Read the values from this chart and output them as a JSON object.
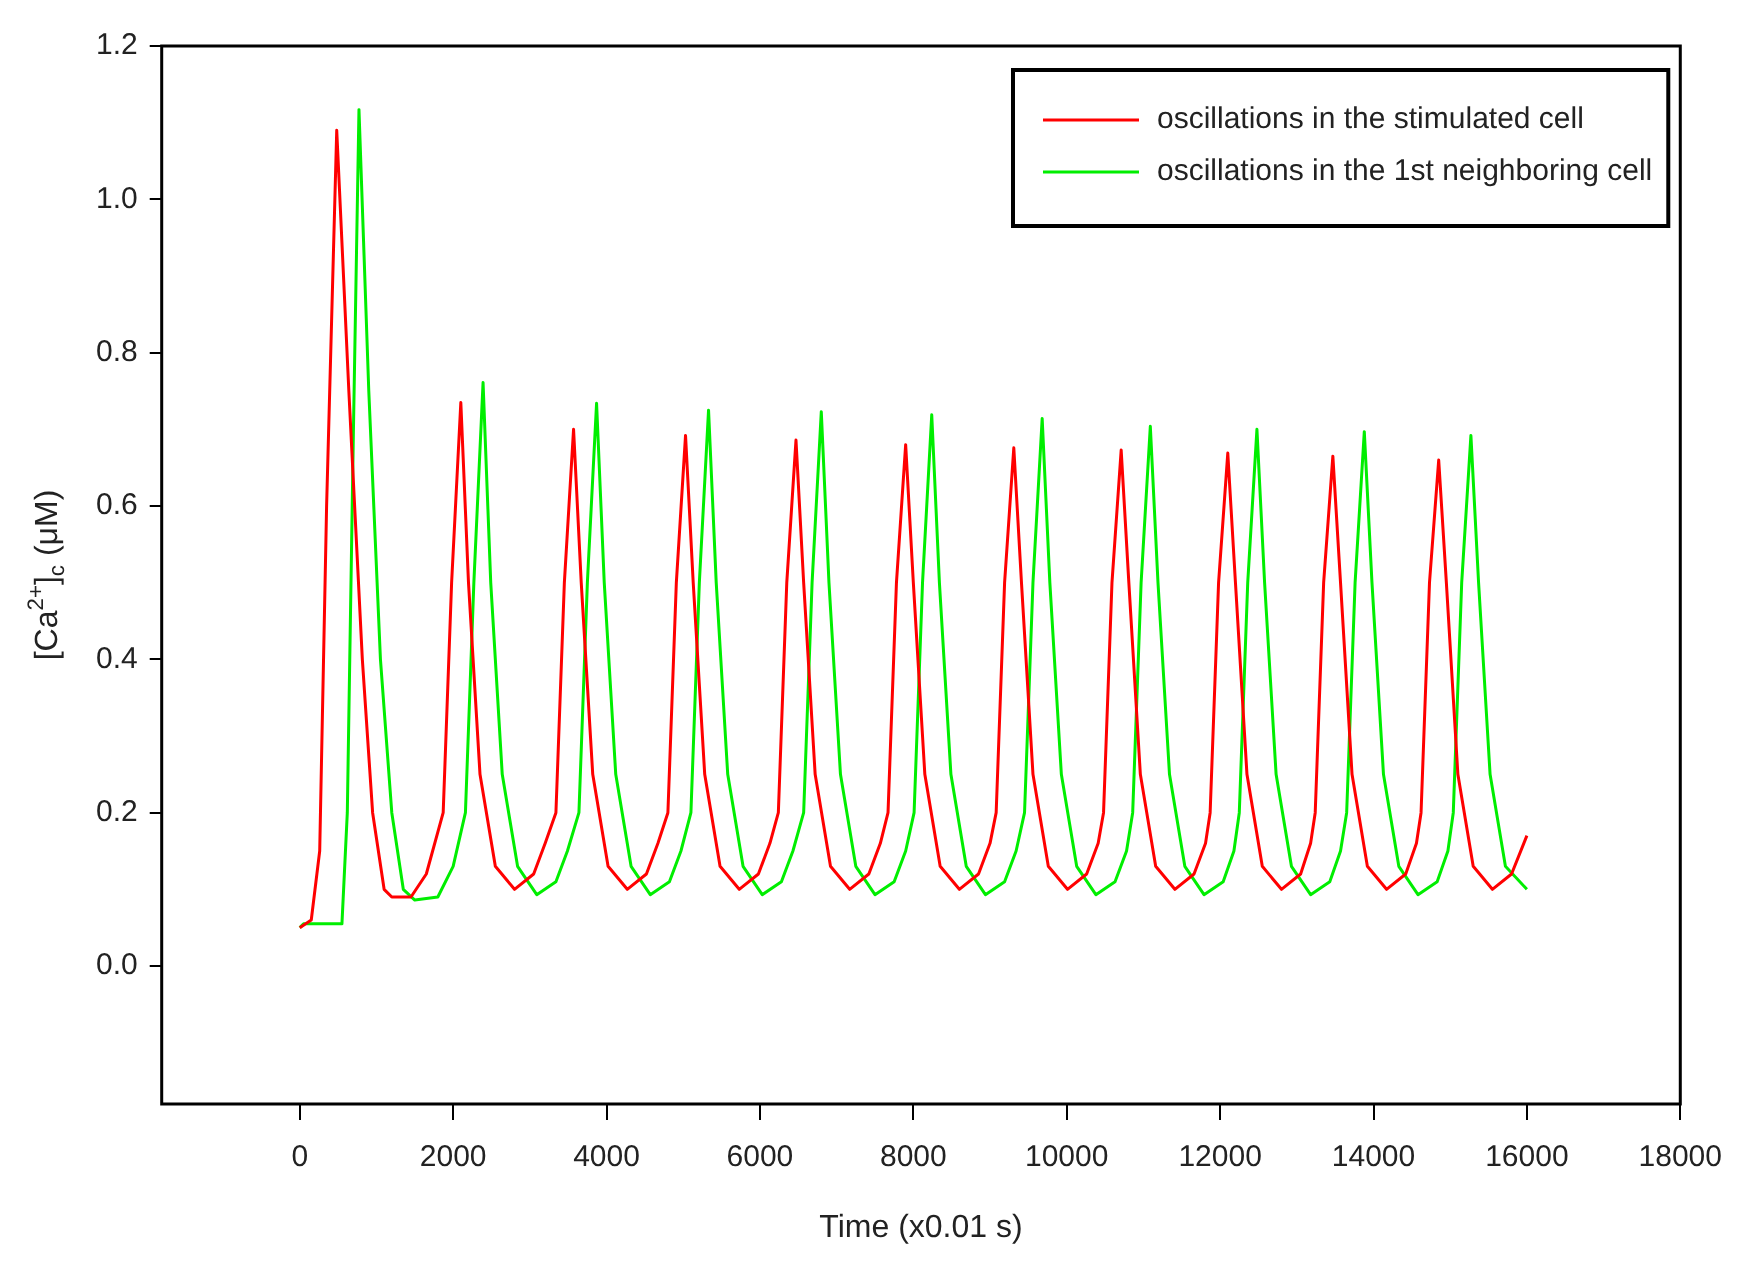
{
  "chart_data": {
    "type": "line",
    "xlabel": "Time (x0.01 s)",
    "ylabel": "[Ca$^{2+}$]$_{c}$ (μM)",
    "xlim": [
      -1800,
      18000
    ],
    "xticks": [
      0,
      2000,
      4000,
      6000,
      8000,
      10000,
      12000,
      14000,
      16000,
      18000
    ],
    "ylim": [
      -0.18,
      1.2
    ],
    "yticks": [
      {
        "value": 0,
        "label": "0.0"
      },
      {
        "value": 0.2,
        "label": "0.2"
      },
      {
        "value": 0.4,
        "label": "0.4"
      },
      {
        "value": 0.6,
        "label": "0.6"
      },
      {
        "value": 0.8,
        "label": "0.8"
      },
      {
        "value": 1,
        "label": "1.0"
      },
      {
        "value": 1.2,
        "label": "1.2"
      }
    ],
    "grid": false,
    "legend": "top right",
    "marker": "none",
    "line_style": "solid",
    "series": [
      {
        "name": "oscillations in the stimulated cell",
        "color": "#ff0000",
        "x": [
          0,
          150,
          260,
          350,
          482,
          640,
          816,
          950,
          1100,
          1200,
          1450,
          1650,
          1870,
          1980,
          2100,
          2200,
          2350,
          2550,
          2800,
          3050,
          3200,
          3340,
          3450,
          3570,
          3670,
          3820,
          4020,
          4270,
          4520,
          4670,
          4800,
          4910,
          5030,
          5130,
          5280,
          5480,
          5730,
          5980,
          6130,
          6240,
          6350,
          6470,
          6570,
          6720,
          6920,
          7170,
          7420,
          7570,
          7670,
          7780,
          7900,
          8000,
          8150,
          8350,
          8600,
          8850,
          9000,
          9080,
          9190,
          9310,
          9410,
          9560,
          9760,
          10010,
          10260,
          10410,
          10480,
          10590,
          10710,
          10810,
          10960,
          11160,
          11410,
          11660,
          11810,
          11870,
          11980,
          12100,
          12200,
          12350,
          12550,
          12800,
          13050,
          13180,
          13240,
          13350,
          13470,
          13570,
          13720,
          13920,
          14170,
          14420,
          14560,
          14620,
          14730,
          14850,
          14950,
          15100,
          15300,
          15550,
          15800,
          16000
        ],
        "values": [
          0.05,
          0.06,
          0.15,
          0.6,
          1.09,
          0.75,
          0.4,
          0.2,
          0.1,
          0.09,
          0.09,
          0.12,
          0.2,
          0.5,
          0.735,
          0.5,
          0.25,
          0.13,
          0.1,
          0.12,
          0.16,
          0.2,
          0.5,
          0.7,
          0.5,
          0.25,
          0.13,
          0.1,
          0.12,
          0.16,
          0.2,
          0.5,
          0.692,
          0.5,
          0.25,
          0.13,
          0.1,
          0.12,
          0.16,
          0.2,
          0.5,
          0.686,
          0.5,
          0.25,
          0.13,
          0.1,
          0.12,
          0.16,
          0.2,
          0.5,
          0.68,
          0.5,
          0.25,
          0.13,
          0.1,
          0.12,
          0.16,
          0.2,
          0.5,
          0.676,
          0.5,
          0.25,
          0.13,
          0.1,
          0.12,
          0.16,
          0.2,
          0.5,
          0.673,
          0.5,
          0.25,
          0.13,
          0.1,
          0.12,
          0.16,
          0.2,
          0.5,
          0.669,
          0.5,
          0.25,
          0.13,
          0.1,
          0.12,
          0.16,
          0.2,
          0.5,
          0.665,
          0.5,
          0.25,
          0.13,
          0.1,
          0.12,
          0.16,
          0.2,
          0.5,
          0.66,
          0.5,
          0.25,
          0.13,
          0.1,
          0.12,
          0.17
        ]
      },
      {
        "name": "oscillations in the 1st neighboring cell",
        "color": "#00ee00",
        "x": [
          0,
          50,
          550,
          620,
          700,
          772,
          900,
          1052,
          1200,
          1350,
          1500,
          1800,
          2000,
          2160,
          2270,
          2390,
          2490,
          2640,
          2840,
          3090,
          3340,
          3490,
          3640,
          3750,
          3870,
          3970,
          4120,
          4320,
          4570,
          4820,
          4970,
          5100,
          5210,
          5330,
          5430,
          5580,
          5780,
          6030,
          6280,
          6430,
          6570,
          6680,
          6800,
          6900,
          7050,
          7250,
          7500,
          7750,
          7900,
          8010,
          8120,
          8240,
          8340,
          8490,
          8690,
          8940,
          9190,
          9340,
          9450,
          9560,
          9680,
          9780,
          9930,
          10130,
          10380,
          10630,
          10780,
          10860,
          10970,
          11090,
          11190,
          11340,
          11540,
          11790,
          12040,
          12180,
          12250,
          12360,
          12480,
          12580,
          12730,
          12930,
          13180,
          13430,
          13570,
          13650,
          13760,
          13880,
          13980,
          14130,
          14330,
          14580,
          14830,
          14970,
          15040,
          15150,
          15270,
          15370,
          15520,
          15720,
          16000
        ],
        "values": [
          0.05,
          0.055,
          0.055,
          0.2,
          0.7,
          1.117,
          0.75,
          0.4,
          0.2,
          0.1,
          0.086,
          0.09,
          0.13,
          0.2,
          0.5,
          0.761,
          0.5,
          0.25,
          0.13,
          0.093,
          0.11,
          0.15,
          0.2,
          0.5,
          0.734,
          0.5,
          0.25,
          0.13,
          0.093,
          0.11,
          0.15,
          0.2,
          0.5,
          0.725,
          0.5,
          0.25,
          0.13,
          0.093,
          0.11,
          0.15,
          0.2,
          0.5,
          0.723,
          0.5,
          0.25,
          0.13,
          0.093,
          0.11,
          0.15,
          0.2,
          0.5,
          0.719,
          0.5,
          0.25,
          0.13,
          0.093,
          0.11,
          0.15,
          0.2,
          0.5,
          0.714,
          0.5,
          0.25,
          0.13,
          0.093,
          0.11,
          0.15,
          0.2,
          0.5,
          0.704,
          0.5,
          0.25,
          0.13,
          0.093,
          0.11,
          0.15,
          0.2,
          0.5,
          0.7,
          0.5,
          0.25,
          0.13,
          0.093,
          0.11,
          0.15,
          0.2,
          0.5,
          0.697,
          0.5,
          0.25,
          0.13,
          0.093,
          0.11,
          0.15,
          0.2,
          0.5,
          0.692,
          0.5,
          0.25,
          0.13,
          0.1
        ]
      }
    ]
  }
}
